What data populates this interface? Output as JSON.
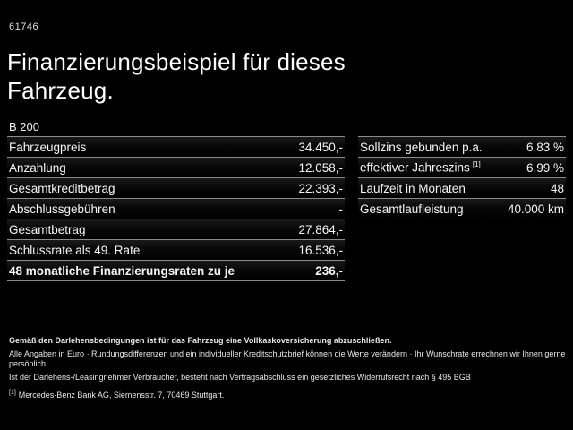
{
  "page": {
    "code": "61746",
    "title_line1": "Finanzierungsbeispiel für dieses",
    "title_line2": "Fahrzeug.",
    "model": "B 200"
  },
  "finance_table": {
    "rows": [
      {
        "label": "Fahrzeugpreis",
        "value": "34.450,-",
        "bold": false
      },
      {
        "label": "Anzahlung",
        "value": "12.058,-",
        "bold": false
      },
      {
        "label": "Gesamtkreditbetrag",
        "value": "22.393,-",
        "bold": false
      },
      {
        "label": "Abschlussgebühren",
        "value": "-",
        "bold": false
      },
      {
        "label": "Gesamtbetrag",
        "value": "27.864,-",
        "bold": false
      },
      {
        "label": "Schlussrate als 49. Rate",
        "value": "16.536,-",
        "bold": false
      },
      {
        "label": "48 monatliche Finanzierungsraten zu je",
        "value": "236,-",
        "bold": true
      }
    ]
  },
  "conditions_table": {
    "rows": [
      {
        "label": "Sollzins gebunden p.a.",
        "sup": "",
        "value": "6,83 %"
      },
      {
        "label": "effektiver Jahreszins",
        "sup": "[1]",
        "value": "6,99 %"
      },
      {
        "label": "Laufzeit in Monaten",
        "sup": "",
        "value": "48"
      },
      {
        "label": "Gesamtlaufleistung",
        "sup": "",
        "value": "40.000 km"
      }
    ]
  },
  "footnotes": {
    "insurance": "Gemäß den Darlehensbedingungen ist für das Fahrzeug eine Vollkaskoversicherung abzuschließen.",
    "disclaimer": "Alle Angaben in Euro · Rundungsdifferenzen und ein individueller Kreditschutzbrief können die Werte verändern · Ihr Wunschrate errechnen wir Ihnen gerne persönlich",
    "withdrawal": "Ist der Darlehens-/Leasingnehmer Verbraucher, besteht nach Vertragsabschluss ein gesetzliches Widerrufsrecht nach § 495 BGB",
    "bank_marker": "[1]",
    "bank": "Mercedes-Benz Bank AG, Siemensstr. 7, 70469 Stuttgart."
  },
  "colors": {
    "background": "#000000",
    "text": "#ffffff",
    "separator": "#8a8a8a",
    "fineprint": "#e8e8e8"
  }
}
